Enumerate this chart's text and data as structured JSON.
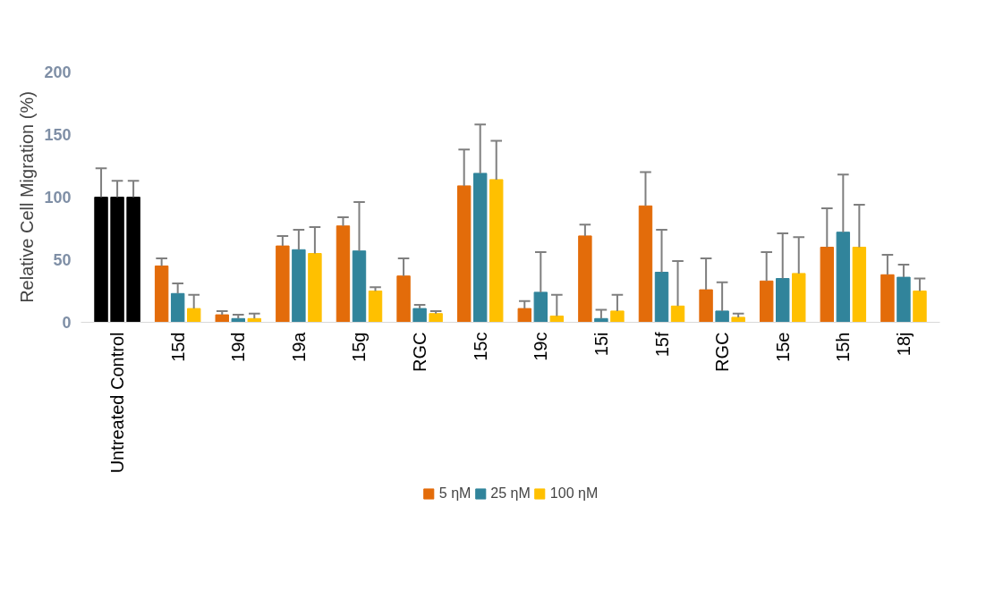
{
  "chart_data": {
    "type": "bar",
    "ylabel": "Relative Cell Migration (%)",
    "categories": [
      "Untreated Control",
      "15d",
      "19d",
      "19a",
      "15g",
      "RGC",
      "15c",
      "19c",
      "15i",
      "15f",
      "RGC",
      "15e",
      "15h",
      "18j"
    ],
    "series": [
      {
        "name": "5 ηM",
        "color": "#e36c0a",
        "colors": [
          "#000000",
          "#e36c0a",
          "#e36c0a",
          "#e36c0a",
          "#e36c0a",
          "#e36c0a",
          "#e36c0a",
          "#e36c0a",
          "#e36c0a",
          "#e36c0a",
          "#e36c0a",
          "#e36c0a",
          "#e36c0a",
          "#e36c0a"
        ],
        "values": [
          100,
          45,
          6,
          61,
          77,
          37,
          109,
          11,
          69,
          93,
          26,
          33,
          60,
          38
        ],
        "errors": [
          [
            100,
            123
          ],
          [
            45,
            51
          ],
          [
            6,
            9
          ],
          [
            61,
            69
          ],
          [
            77,
            84
          ],
          [
            37,
            51
          ],
          [
            109,
            138
          ],
          [
            11,
            17
          ],
          [
            69,
            78
          ],
          [
            93,
            120
          ],
          [
            26,
            51
          ],
          [
            33,
            56
          ],
          [
            60,
            91
          ],
          [
            38,
            54
          ]
        ]
      },
      {
        "name": "25 ηM",
        "color": "#31849b",
        "colors": [
          "#000000",
          "#31849b",
          "#31849b",
          "#31849b",
          "#31849b",
          "#31849b",
          "#31849b",
          "#31849b",
          "#31849b",
          "#31849b",
          "#31849b",
          "#31849b",
          "#31849b",
          "#31849b"
        ],
        "values": [
          100,
          23,
          3,
          58,
          57,
          11,
          119,
          24,
          3,
          40,
          9,
          35,
          72,
          36
        ],
        "errors": [
          [
            100,
            113
          ],
          [
            23,
            31
          ],
          [
            3,
            6
          ],
          [
            58,
            74
          ],
          [
            57,
            96
          ],
          [
            11,
            14
          ],
          [
            119,
            158
          ],
          [
            24,
            56
          ],
          [
            3,
            10
          ],
          [
            40,
            74
          ],
          [
            9,
            32
          ],
          [
            35,
            71
          ],
          [
            72,
            118
          ],
          [
            36,
            46
          ]
        ]
      },
      {
        "name": "100 ηM",
        "color": "#ffc000",
        "colors": [
          "#000000",
          "#ffc000",
          "#ffc000",
          "#ffc000",
          "#ffc000",
          "#ffc000",
          "#ffc000",
          "#ffc000",
          "#ffc000",
          "#ffc000",
          "#ffc000",
          "#ffc000",
          "#ffc000",
          "#ffc000"
        ],
        "values": [
          100,
          11,
          3,
          55,
          25,
          7,
          114,
          5,
          9,
          13,
          4,
          39,
          60,
          25
        ],
        "errors": [
          [
            100,
            113
          ],
          [
            11,
            22
          ],
          [
            3,
            7
          ],
          [
            55,
            76
          ],
          [
            25,
            28
          ],
          [
            7,
            9
          ],
          [
            114,
            145
          ],
          [
            5,
            22
          ],
          [
            9,
            22
          ],
          [
            13,
            49
          ],
          [
            4,
            7
          ],
          [
            39,
            68
          ],
          [
            60,
            94
          ],
          [
            25,
            35
          ]
        ]
      }
    ],
    "ylim": [
      0,
      200
    ],
    "yticks": [
      0,
      50,
      100,
      150,
      200
    ],
    "grid": false,
    "legend": "bottom"
  }
}
